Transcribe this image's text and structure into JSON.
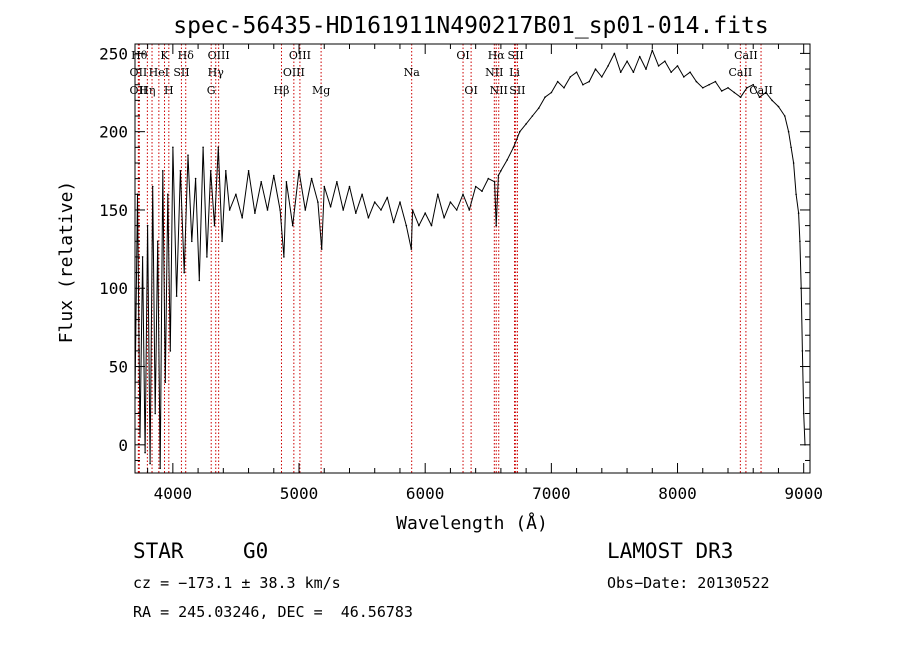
{
  "chart_data": {
    "type": "line",
    "title": "spec-56435-HD161911N490217B01_sp01-014.fits",
    "xlabel": "Wavelength (Å)",
    "ylabel": "Flux (relative)",
    "xlim": [
      3700,
      9050
    ],
    "ylim": [
      -18,
      256
    ],
    "xticks": [
      4000,
      5000,
      6000,
      7000,
      8000,
      9000
    ],
    "yticks": [
      0,
      50,
      100,
      150,
      200,
      250
    ],
    "series": [
      {
        "name": "flux",
        "x": [
          3700,
          3720,
          3740,
          3760,
          3780,
          3800,
          3820,
          3840,
          3860,
          3880,
          3900,
          3920,
          3940,
          3960,
          3980,
          4000,
          4030,
          4060,
          4090,
          4120,
          4150,
          4180,
          4210,
          4240,
          4270,
          4300,
          4330,
          4360,
          4390,
          4420,
          4450,
          4500,
          4550,
          4600,
          4650,
          4700,
          4750,
          4800,
          4850,
          4880,
          4900,
          4950,
          5000,
          5050,
          5100,
          5150,
          5180,
          5200,
          5250,
          5300,
          5350,
          5400,
          5450,
          5500,
          5550,
          5600,
          5650,
          5700,
          5750,
          5800,
          5850,
          5890,
          5900,
          5950,
          6000,
          6050,
          6100,
          6150,
          6200,
          6250,
          6300,
          6350,
          6400,
          6450,
          6500,
          6550,
          6563,
          6580,
          6600,
          6650,
          6700,
          6750,
          6800,
          6850,
          6900,
          6950,
          7000,
          7050,
          7100,
          7150,
          7200,
          7250,
          7300,
          7350,
          7400,
          7450,
          7500,
          7550,
          7600,
          7650,
          7700,
          7750,
          7800,
          7850,
          7900,
          7950,
          8000,
          8050,
          8100,
          8150,
          8200,
          8250,
          8300,
          8350,
          8400,
          8450,
          8500,
          8550,
          8600,
          8650,
          8700,
          8750,
          8800,
          8850,
          8880,
          8900,
          8920,
          8940,
          8960,
          8970,
          8980,
          8990,
          9000,
          9010
        ],
        "values": [
          30,
          160,
          5,
          120,
          -5,
          140,
          -12,
          165,
          20,
          130,
          -15,
          175,
          40,
          160,
          60,
          190,
          95,
          175,
          110,
          185,
          130,
          170,
          105,
          190,
          120,
          175,
          140,
          190,
          130,
          175,
          150,
          160,
          145,
          175,
          148,
          168,
          150,
          172,
          150,
          120,
          168,
          140,
          175,
          150,
          170,
          155,
          125,
          165,
          152,
          168,
          150,
          165,
          148,
          160,
          145,
          155,
          150,
          158,
          142,
          155,
          140,
          125,
          150,
          140,
          148,
          140,
          160,
          145,
          155,
          150,
          160,
          150,
          165,
          162,
          170,
          168,
          140,
          172,
          175,
          182,
          190,
          200,
          205,
          210,
          215,
          222,
          225,
          232,
          228,
          235,
          238,
          230,
          232,
          240,
          235,
          242,
          250,
          238,
          245,
          238,
          248,
          240,
          252,
          242,
          245,
          238,
          242,
          235,
          238,
          232,
          228,
          230,
          232,
          226,
          228,
          225,
          222,
          228,
          230,
          222,
          225,
          220,
          216,
          210,
          200,
          190,
          180,
          160,
          148,
          130,
          100,
          60,
          20,
          0
        ]
      }
    ],
    "lines": [
      {
        "w": 3734,
        "label": "Hθ",
        "row": 0
      },
      {
        "w": 3727,
        "label": "OII",
        "row": 1
      },
      {
        "w": 3727,
        "label": "OII",
        "row": 2
      },
      {
        "w": 3798,
        "label": "Hη",
        "row": 2
      },
      {
        "w": 3835,
        "label": "",
        "row": 0
      },
      {
        "w": 3889,
        "label": "HeI",
        "row": 1
      },
      {
        "w": 3934,
        "label": "K",
        "row": 0
      },
      {
        "w": 3968,
        "label": "H",
        "row": 2
      },
      {
        "w": 4068,
        "label": "SII",
        "row": 1
      },
      {
        "w": 4102,
        "label": "Hδ",
        "row": 0
      },
      {
        "w": 4304,
        "label": "G",
        "row": 2
      },
      {
        "w": 4340,
        "label": "Hγ",
        "row": 1
      },
      {
        "w": 4363,
        "label": "OIII",
        "row": 0
      },
      {
        "w": 4861,
        "label": "Hβ",
        "row": 2
      },
      {
        "w": 4959,
        "label": "OIII",
        "row": 1
      },
      {
        "w": 5007,
        "label": "OIII",
        "row": 0
      },
      {
        "w": 5175,
        "label": "Mg",
        "row": 2
      },
      {
        "w": 5893,
        "label": "Na",
        "row": 1
      },
      {
        "w": 6300,
        "label": "OI",
        "row": 0
      },
      {
        "w": 6364,
        "label": "OI",
        "row": 2
      },
      {
        "w": 6548,
        "label": "NII",
        "row": 1
      },
      {
        "w": 6563,
        "label": "Hα",
        "row": 0
      },
      {
        "w": 6583,
        "label": "NII",
        "row": 2
      },
      {
        "w": 6708,
        "label": "Li",
        "row": 1
      },
      {
        "w": 6717,
        "label": "SII",
        "row": 0
      },
      {
        "w": 6731,
        "label": "SII",
        "row": 2
      },
      {
        "w": 8498,
        "label": "CaII",
        "row": 1
      },
      {
        "w": 8542,
        "label": "CaII",
        "row": 0
      },
      {
        "w": 8662,
        "label": "CaII",
        "row": 2
      }
    ]
  },
  "info": {
    "class": "STAR",
    "subclass": "G0",
    "survey": "LAMOST DR3",
    "cz": "cz = −173.1 ± 38.3 km/s",
    "obs_date": "Obs−Date: 20130522",
    "coords": "RA = 245.03246, DEC =  46.56783"
  }
}
